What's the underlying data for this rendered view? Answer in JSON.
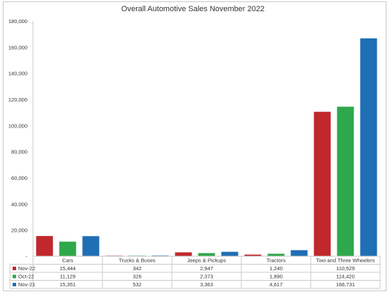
{
  "chart_data": {
    "type": "bar",
    "title": "Overall Automotive Sales November 2022",
    "categories": [
      "Cars",
      "Trucks & Buses",
      "Jeeps & Pickups",
      "Tractors",
      "Two and Three Wheelers"
    ],
    "series": [
      {
        "name": "Nov-22",
        "color": "#c0282d",
        "values": [
          15444,
          342,
          2947,
          1240,
          110529
        ],
        "labels": [
          "15,444",
          "342",
          "2,947",
          "1,240",
          "110,529"
        ]
      },
      {
        "name": "Oct-22",
        "color": "#2ea84a",
        "values": [
          11129,
          326,
          2373,
          1890,
          114420
        ],
        "labels": [
          "11,129",
          "326",
          "2,373",
          "1,890",
          "114,420"
        ]
      },
      {
        "name": "Nov-21",
        "color": "#1f6fb5",
        "values": [
          15351,
          532,
          3363,
          4617,
          166731
        ],
        "labels": [
          "15,351",
          "532",
          "3,363",
          "4,617",
          "166,731"
        ]
      }
    ],
    "ylim": [
      0,
      180000
    ],
    "yticks": [
      0,
      20000,
      40000,
      60000,
      80000,
      100000,
      120000,
      140000,
      160000,
      180000
    ],
    "ytick_labels": [
      "-",
      "20,000",
      "40,000",
      "60,000",
      "80,000",
      "100,000",
      "120,000",
      "140,000",
      "160,000",
      "180,000"
    ],
    "grid": false,
    "legend": "data-table"
  }
}
